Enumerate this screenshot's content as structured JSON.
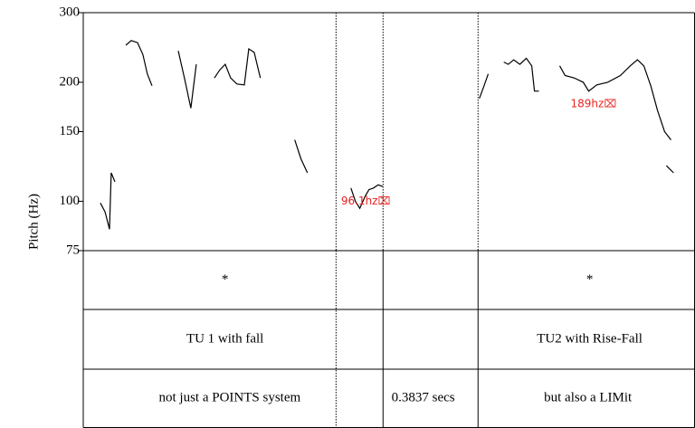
{
  "chart_data": {
    "type": "line",
    "y_label": "Pitch (Hz)",
    "ylim": [
      75,
      300
    ],
    "yticks": [
      75,
      100,
      150,
      200,
      300
    ],
    "log_y": true,
    "xlim": [
      0,
      2.471
    ],
    "color": "#000000",
    "series": [
      {
        "x": [
          0.069,
          0.088,
          0.106,
          0.113,
          0.128
        ],
        "values": [
          99,
          94,
          85,
          118,
          112
        ]
      },
      {
        "x": [
          0.172,
          0.194,
          0.219,
          0.241,
          0.259,
          0.278
        ],
        "values": [
          248,
          255,
          252,
          235,
          210,
          196
        ]
      },
      {
        "x": [
          0.384,
          0.409,
          0.435,
          0.457
        ],
        "values": [
          240,
          205,
          172,
          222
        ]
      },
      {
        "x": [
          0.53,
          0.552,
          0.574,
          0.596,
          0.621,
          0.651,
          0.669,
          0.691,
          0.716
        ],
        "values": [
          205,
          215,
          222,
          205,
          198,
          197,
          243,
          238,
          205
        ]
      },
      {
        "x": [
          0.855,
          0.88,
          0.906
        ],
        "values": [
          143,
          128,
          118
        ]
      },
      {
        "x": [
          1.082,
          1.1,
          1.118,
          1.14,
          1.155,
          1.173,
          1.192,
          1.21
        ],
        "values": [
          108,
          100,
          96,
          103,
          107,
          108,
          110,
          109
        ]
      },
      {
        "x": [
          1.601,
          1.619,
          1.637
        ],
        "values": [
          182,
          195,
          210
        ]
      },
      {
        "x": [
          1.7,
          1.718,
          1.74,
          1.765,
          1.791,
          1.813,
          1.824,
          1.842
        ],
        "values": [
          225,
          222,
          228,
          222,
          230,
          220,
          190,
          190
        ]
      },
      {
        "x": [
          1.926,
          1.948,
          1.985,
          2.021,
          2.043,
          2.076,
          2.12,
          2.171,
          2.211,
          2.24,
          2.266,
          2.295,
          2.321,
          2.35,
          2.376
        ],
        "values": [
          220,
          208,
          205,
          200,
          190,
          197,
          200,
          208,
          220,
          228,
          220,
          195,
          170,
          150,
          143
        ]
      },
      {
        "x": [
          2.357,
          2.386
        ],
        "values": [
          123,
          118
        ]
      }
    ],
    "annotations": [
      {
        "text": "96.1hz⌧",
        "x": 1.042,
        "y": 100
      },
      {
        "text": "189hz⌧",
        "x": 1.97,
        "y": 176
      }
    ],
    "boundaries": [
      {
        "x": 1.02,
        "tiers": "dotted"
      },
      {
        "x": 1.21,
        "tiers": "solid"
      },
      {
        "x": 1.594,
        "tiers": "solid"
      }
    ],
    "tiers": [
      [
        {
          "text": "*",
          "x": 0.573
        },
        {
          "text": "*",
          "x": 2.047
        }
      ],
      [
        {
          "text": "TU 1 with fall",
          "x": 0.573
        },
        {
          "text": "TU2 with Rise-Fall",
          "x": 2.047
        }
      ],
      [
        {
          "text": "not just a POINTS system",
          "x": 0.592
        },
        {
          "text": "0.3837 secs",
          "x": 1.374
        },
        {
          "text": "but also a LIMit",
          "x": 2.04
        }
      ]
    ]
  }
}
